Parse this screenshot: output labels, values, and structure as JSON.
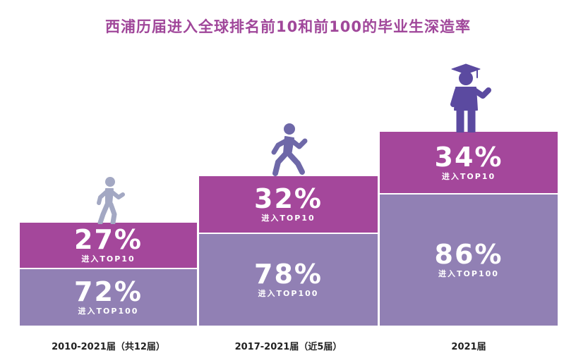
{
  "title": "西浦历届进入全球排名前10和前100的毕业生深造率",
  "colors": {
    "title": "#a0479a",
    "top10_bar": "#a4479b",
    "top100_bar": "#9180b4",
    "figure_light": "#a3a8c3",
    "figure_mid": "#6e68a8",
    "figure_dark": "#5b4aa0"
  },
  "icons": [
    "walking-person-icon",
    "running-person-icon",
    "graduate-icon"
  ],
  "chart_data": {
    "type": "bar",
    "title": "西浦历届进入全球排名前10和前100的毕业生深造率",
    "categories": [
      "2010-2021届（共12届）",
      "2017-2021届（近5届）",
      "2021届"
    ],
    "series": [
      {
        "name": "进入TOP10",
        "values": [
          27,
          32,
          34
        ],
        "labels": [
          "27%",
          "32%",
          "34%"
        ]
      },
      {
        "name": "进入TOP100",
        "values": [
          72,
          78,
          86
        ],
        "labels": [
          "72%",
          "78%",
          "86%"
        ]
      }
    ],
    "unit": "%"
  }
}
